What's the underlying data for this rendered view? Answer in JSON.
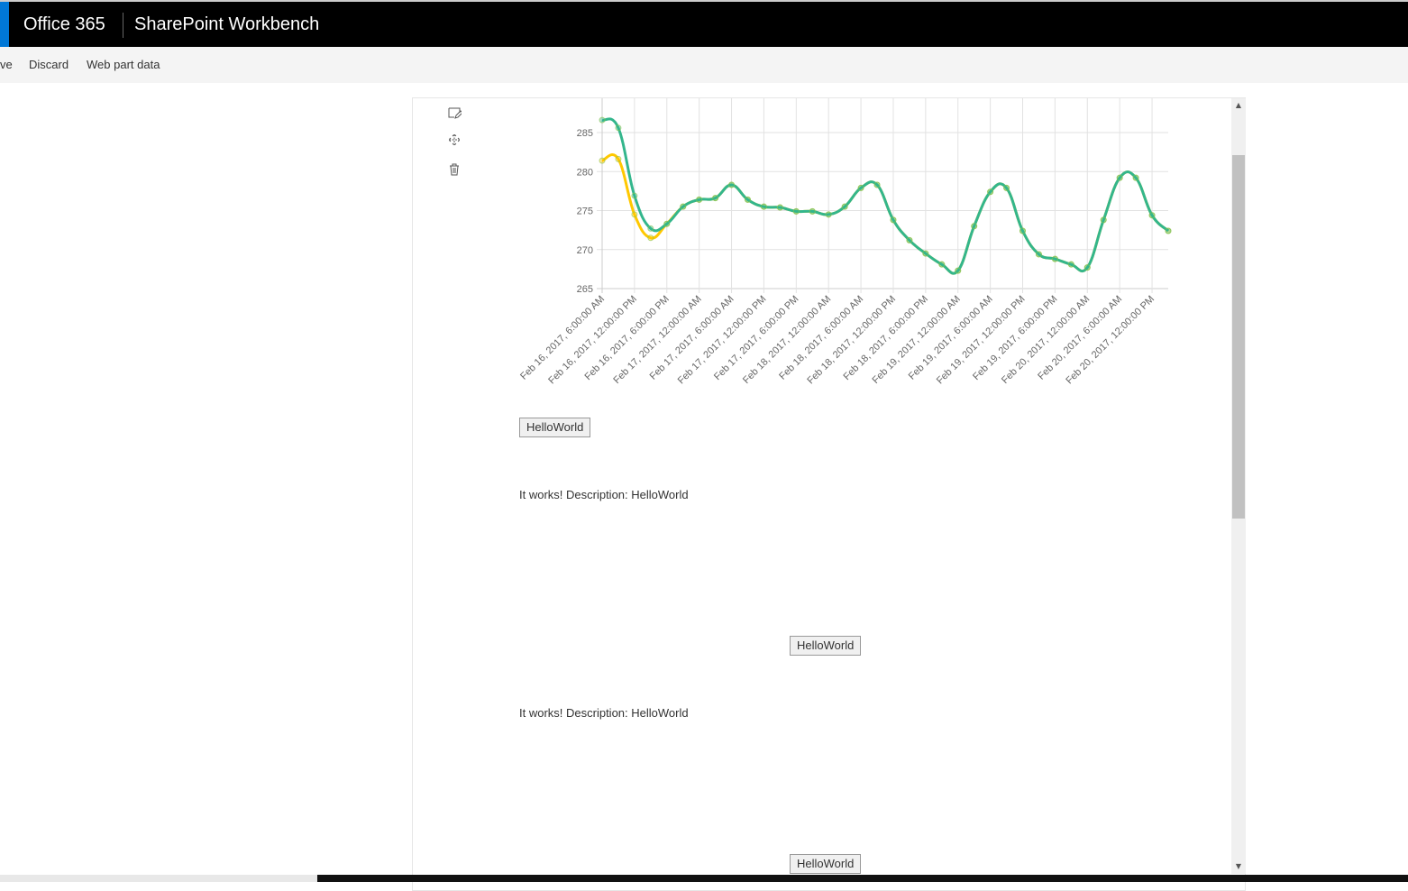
{
  "header": {
    "brand": "Office 365",
    "app_title": "SharePoint Workbench"
  },
  "toolbar": {
    "items": [
      "ve",
      "Discard",
      "Web part data"
    ]
  },
  "webpart_tools": {
    "icons": [
      "edit-icon",
      "move-icon",
      "delete-icon"
    ]
  },
  "content": {
    "button_label": "HelloWorld",
    "message": "It works! Description: HelloWorld"
  },
  "chart_data": {
    "type": "line",
    "smooth": true,
    "grid": true,
    "ylim": [
      265,
      287
    ],
    "yticks": [
      265,
      270,
      275,
      280,
      285
    ],
    "xtick_labels": [
      "Feb 16, 2017, 6:00:00 AM",
      "Feb 16, 2017, 12:00:00 PM",
      "Feb 16, 2017, 6:00:00 PM",
      "Feb 17, 2017, 12:00:00 AM",
      "Feb 17, 2017, 6:00:00 AM",
      "Feb 17, 2017, 12:00:00 PM",
      "Feb 17, 2017, 6:00:00 PM",
      "Feb 18, 2017, 12:00:00 AM",
      "Feb 18, 2017, 6:00:00 AM",
      "Feb 18, 2017, 12:00:00 PM",
      "Feb 18, 2017, 6:00:00 PM",
      "Feb 19, 2017, 12:00:00 AM",
      "Feb 19, 2017, 6:00:00 AM",
      "Feb 19, 2017, 12:00:00 PM",
      "Feb 19, 2017, 6:00:00 PM",
      "Feb 20, 2017, 12:00:00 AM",
      "Feb 20, 2017, 6:00:00 AM",
      "Feb 20, 2017, 12:00:00 PM"
    ],
    "x_interval_hours": 3,
    "x_start": "Feb 16, 2017, 6:00:00 AM",
    "series": [
      {
        "color": "#ffc800",
        "values": [
          281.4,
          281.6,
          274.5,
          271.5,
          273.3,
          275.5,
          276.4,
          276.6,
          278.3,
          276.4,
          275.5,
          275.4,
          274.9,
          274.9,
          274.5,
          275.5,
          277.9,
          278.3,
          273.8,
          271.2,
          269.5,
          268.1,
          267.3,
          273.0,
          277.4,
          277.9,
          272.4,
          269.4,
          268.8,
          268.1,
          267.7,
          273.8,
          279.2,
          279.2,
          274.4,
          272.4
        ]
      },
      {
        "color": "#33b68c",
        "values": [
          286.6,
          285.6,
          276.9,
          272.7,
          273.3,
          275.5,
          276.4,
          276.6,
          278.3,
          276.4,
          275.5,
          275.4,
          274.9,
          274.9,
          274.5,
          275.5,
          277.9,
          278.3,
          273.8,
          271.2,
          269.5,
          268.1,
          267.3,
          273.0,
          277.4,
          277.9,
          272.4,
          269.4,
          268.8,
          268.1,
          267.7,
          273.8,
          279.2,
          279.2,
          274.4,
          272.4
        ]
      }
    ]
  }
}
